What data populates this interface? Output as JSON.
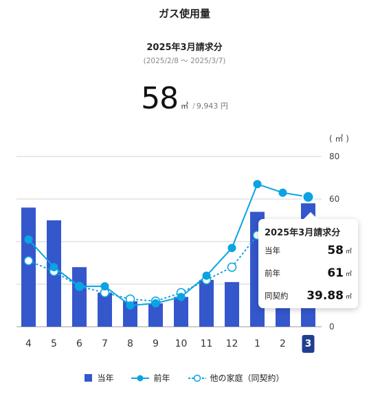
{
  "header": {
    "title": "ガス使用量",
    "period": "2025年3月請求分",
    "range": "(2025/2/8 〜 2025/3/7)",
    "usage_value": "58",
    "usage_unit": "㎥",
    "separator": "/",
    "price": "9,943 円"
  },
  "tooltip": {
    "title": "2025年3月請求分",
    "rows": [
      {
        "label": "当年",
        "value": "58",
        "unit": "㎥"
      },
      {
        "label": "前年",
        "value": "61",
        "unit": "㎥"
      },
      {
        "label": "同契約",
        "value": "39.88",
        "unit": "㎥"
      }
    ]
  },
  "chart_data": {
    "type": "bar",
    "categories": [
      "4",
      "5",
      "6",
      "7",
      "8",
      "9",
      "10",
      "11",
      "12",
      "1",
      "2",
      "3"
    ],
    "selected_category": "3",
    "y_unit_label": "( ㎥ )",
    "ylim": [
      0,
      80
    ],
    "yticks": [
      0,
      20,
      40,
      60,
      80
    ],
    "series": [
      {
        "name": "当年",
        "type": "bar",
        "color": "#3557cc",
        "values": [
          56,
          50,
          28,
          16,
          12,
          11,
          14,
          22,
          21,
          54,
          46,
          58
        ]
      },
      {
        "name": "前年",
        "type": "line",
        "color": "#0aa3e3",
        "values": [
          41,
          28,
          19,
          19,
          10,
          11,
          14,
          24,
          37,
          67,
          63,
          61
        ]
      },
      {
        "name": "他の家庭（同契約）",
        "type": "line-dashed",
        "color": "#0aa3e3",
        "values": [
          31,
          26,
          19,
          16,
          13,
          12,
          16,
          22,
          28,
          43,
          42,
          40
        ]
      }
    ],
    "grid": true,
    "legend_position": "bottom"
  },
  "legend": [
    {
      "label": "当年",
      "marker": "square",
      "color": "#3557cc"
    },
    {
      "label": "前年",
      "marker": "solid-dot-line",
      "color": "#0aa3e3"
    },
    {
      "label": "他の家庭（同契約）",
      "marker": "hollow-dot-dashed",
      "color": "#0aa3e3"
    }
  ]
}
